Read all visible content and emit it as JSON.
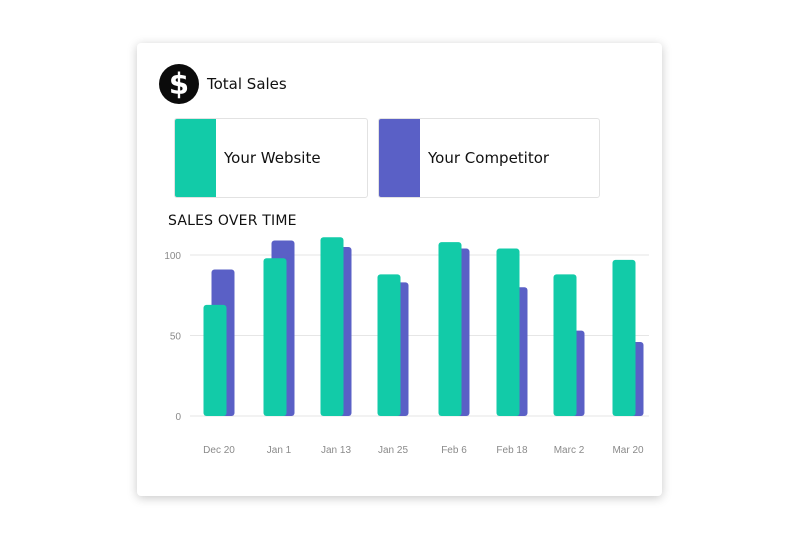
{
  "header": {
    "title": "Total Sales",
    "icon": "dollar-icon"
  },
  "legend": [
    {
      "label": "Your Website",
      "color": "#12CBA8"
    },
    {
      "label": "Your Competitor",
      "color": "#5A60C6"
    }
  ],
  "section_title": "SALES OVER TIME",
  "chart_data": {
    "type": "bar",
    "title": "SALES OVER TIME",
    "categories": [
      "Dec 20",
      "Jan 1",
      "Jan 13",
      "Jan 25",
      "Feb 6",
      "Feb 18",
      "Marc 2",
      "Mar 20"
    ],
    "series": [
      {
        "name": "Your Website",
        "color": "#12CBA8",
        "values": [
          69,
          98,
          111,
          88,
          108,
          104,
          88,
          97
        ]
      },
      {
        "name": "Your Competitor",
        "color": "#5A60C6",
        "values": [
          91,
          109,
          105,
          83,
          104,
          80,
          53,
          46
        ]
      }
    ],
    "yticks": [
      0,
      50,
      100
    ],
    "ylim": [
      0,
      112
    ],
    "grid": true,
    "legend_position": "top"
  }
}
